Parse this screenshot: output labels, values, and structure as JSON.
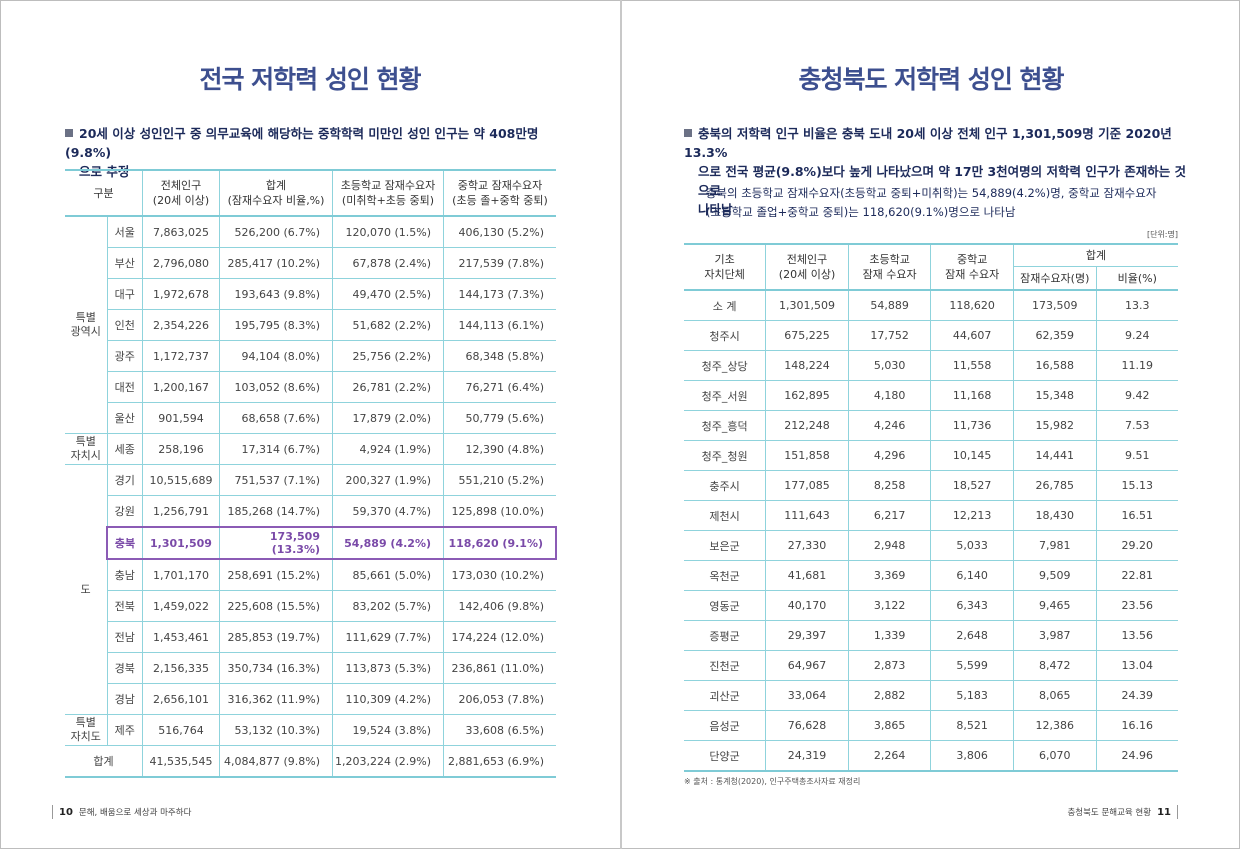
{
  "left_page": {
    "title": "전국 저학력 성인 현황",
    "lead_line1": "20세 이상 성인인구 중 의무교육에 해당하는 중학학력 미만인 성인 인구는 약 408만명(9.8%)",
    "lead_line2": "으로 추정",
    "table": {
      "headers": {
        "category": "구분",
        "population": [
          "전체인구",
          "(20세 이상)"
        ],
        "total": [
          "합계",
          "(잠재수요자 비율,%)"
        ],
        "elementary": [
          "초등학교 잠재수요자",
          "(미취학+초등 중퇴)"
        ],
        "middle": [
          "중학교 잠재수요자",
          "(초등 졸+중학 중퇴)"
        ]
      },
      "groups": {
        "metro": [
          "특별",
          "광역시"
        ],
        "special_city": [
          "특별",
          "자치시"
        ],
        "province": "도",
        "special_province": [
          "특별",
          "자치도"
        ]
      },
      "rows": [
        {
          "region": "서울",
          "population": "7,863,025",
          "total": "526,200 (6.7%)",
          "elementary": "120,070 (1.5%)",
          "middle": "406,130 (5.2%)"
        },
        {
          "region": "부산",
          "population": "2,796,080",
          "total": "285,417 (10.2%)",
          "elementary": "67,878 (2.4%)",
          "middle": "217,539 (7.8%)"
        },
        {
          "region": "대구",
          "population": "1,972,678",
          "total": "193,643 (9.8%)",
          "elementary": "49,470 (2.5%)",
          "middle": "144,173 (7.3%)"
        },
        {
          "region": "인천",
          "population": "2,354,226",
          "total": "195,795 (8.3%)",
          "elementary": "51,682 (2.2%)",
          "middle": "144,113 (6.1%)"
        },
        {
          "region": "광주",
          "population": "1,172,737",
          "total": "94,104 (8.0%)",
          "elementary": "25,756 (2.2%)",
          "middle": "68,348 (5.8%)"
        },
        {
          "region": "대전",
          "population": "1,200,167",
          "total": "103,052 (8.6%)",
          "elementary": "26,781 (2.2%)",
          "middle": "76,271 (6.4%)"
        },
        {
          "region": "울산",
          "population": "901,594",
          "total": "68,658 (7.6%)",
          "elementary": "17,879 (2.0%)",
          "middle": "50,779 (5.6%)"
        },
        {
          "region": "세종",
          "population": "258,196",
          "total": "17,314 (6.7%)",
          "elementary": "4,924 (1.9%)",
          "middle": "12,390 (4.8%)"
        },
        {
          "region": "경기",
          "population": "10,515,689",
          "total": "751,537 (7.1%)",
          "elementary": "200,327 (1.9%)",
          "middle": "551,210 (5.2%)"
        },
        {
          "region": "강원",
          "population": "1,256,791",
          "total": "185,268 (14.7%)",
          "elementary": "59,370 (4.7%)",
          "middle": "125,898 (10.0%)"
        },
        {
          "region": "충북",
          "population": "1,301,509",
          "total": "173,509 (13.3%)",
          "elementary": "54,889 (4.2%)",
          "middle": "118,620 (9.1%)"
        },
        {
          "region": "충남",
          "population": "1,701,170",
          "total": "258,691 (15.2%)",
          "elementary": "85,661 (5.0%)",
          "middle": "173,030 (10.2%)"
        },
        {
          "region": "전북",
          "population": "1,459,022",
          "total": "225,608 (15.5%)",
          "elementary": "83,202 (5.7%)",
          "middle": "142,406 (9.8%)"
        },
        {
          "region": "전남",
          "population": "1,453,461",
          "total": "285,853 (19.7%)",
          "elementary": "111,629 (7.7%)",
          "middle": "174,224 (12.0%)"
        },
        {
          "region": "경북",
          "population": "2,156,335",
          "total": "350,734 (16.3%)",
          "elementary": "113,873 (5.3%)",
          "middle": "236,861 (11.0%)"
        },
        {
          "region": "경남",
          "population": "2,656,101",
          "total": "316,362 (11.9%)",
          "elementary": "110,309 (4.2%)",
          "middle": "206,053 (7.8%)"
        },
        {
          "region": "제주",
          "population": "516,764",
          "total": "53,132 (10.3%)",
          "elementary": "19,524 (3.8%)",
          "middle": "33,608 (6.5%)"
        }
      ],
      "total_row": {
        "label": "합계",
        "population": "41,535,545",
        "total": "4,084,877 (9.8%)",
        "elementary": "1,203,224 (2.9%)",
        "middle": "2,881,653 (6.9%)"
      }
    },
    "footer": {
      "page_number": "10",
      "text": "문해, 배움으로 세상과 마주하다"
    }
  },
  "right_page": {
    "title": "충청북도 저학력 성인 현황",
    "lead_line1": "충북의 저학력 인구 비율은 충북 도내 20세 이상 전체 인구 1,301,509명 기준 2020년 13.3%",
    "lead_line2": "으로 전국 평균(9.8%)보다 높게 나타났으며 약 17만 3천여명의 저학력 인구가 존재하는 것으로",
    "lead_line3": "나타남",
    "sub_line1": "- 충북의 초등학교 잠재수요자(초등학교 중퇴+미취학)는 54,889(4.2%)명, 중학교 잠재수요자",
    "sub_line2": "(초등학교 졸업+중학교 중퇴)는 118,620(9.1%)명으로 나타남",
    "unit": "[단위:명]",
    "table": {
      "headers": {
        "unit": [
          "기초",
          "자치단체"
        ],
        "population": [
          "전체인구",
          "(20세 이상)"
        ],
        "elementary": [
          "초등학교",
          "잠재 수요자"
        ],
        "middle": [
          "중학교",
          "잠재 수요자"
        ],
        "sum": "합계",
        "sum_count": "잠재수요자(명)",
        "sum_ratio": "비율(%)"
      },
      "rows": [
        {
          "name": "소 계",
          "population": "1,301,509",
          "elementary": "54,889",
          "middle": "118,620",
          "count": "173,509",
          "ratio": "13.3"
        },
        {
          "name": "청주시",
          "population": "675,225",
          "elementary": "17,752",
          "middle": "44,607",
          "count": "62,359",
          "ratio": "9.24"
        },
        {
          "name": "청주_상당",
          "population": "148,224",
          "elementary": "5,030",
          "middle": "11,558",
          "count": "16,588",
          "ratio": "11.19"
        },
        {
          "name": "청주_서원",
          "population": "162,895",
          "elementary": "4,180",
          "middle": "11,168",
          "count": "15,348",
          "ratio": "9.42"
        },
        {
          "name": "청주_흥덕",
          "population": "212,248",
          "elementary": "4,246",
          "middle": "11,736",
          "count": "15,982",
          "ratio": "7.53"
        },
        {
          "name": "청주_청원",
          "population": "151,858",
          "elementary": "4,296",
          "middle": "10,145",
          "count": "14,441",
          "ratio": "9.51"
        },
        {
          "name": "충주시",
          "population": "177,085",
          "elementary": "8,258",
          "middle": "18,527",
          "count": "26,785",
          "ratio": "15.13"
        },
        {
          "name": "제천시",
          "population": "111,643",
          "elementary": "6,217",
          "middle": "12,213",
          "count": "18,430",
          "ratio": "16.51"
        },
        {
          "name": "보은군",
          "population": "27,330",
          "elementary": "2,948",
          "middle": "5,033",
          "count": "7,981",
          "ratio": "29.20"
        },
        {
          "name": "옥천군",
          "population": "41,681",
          "elementary": "3,369",
          "middle": "6,140",
          "count": "9,509",
          "ratio": "22.81"
        },
        {
          "name": "영동군",
          "population": "40,170",
          "elementary": "3,122",
          "middle": "6,343",
          "count": "9,465",
          "ratio": "23.56"
        },
        {
          "name": "증평군",
          "population": "29,397",
          "elementary": "1,339",
          "middle": "2,648",
          "count": "3,987",
          "ratio": "13.56"
        },
        {
          "name": "진천군",
          "population": "64,967",
          "elementary": "2,873",
          "middle": "5,599",
          "count": "8,472",
          "ratio": "13.04"
        },
        {
          "name": "괴산군",
          "population": "33,064",
          "elementary": "2,882",
          "middle": "5,183",
          "count": "8,065",
          "ratio": "24.39"
        },
        {
          "name": "음성군",
          "population": "76,628",
          "elementary": "3,865",
          "middle": "8,521",
          "count": "12,386",
          "ratio": "16.16"
        },
        {
          "name": "단양군",
          "population": "24,319",
          "elementary": "2,264",
          "middle": "3,806",
          "count": "6,070",
          "ratio": "24.96"
        }
      ]
    },
    "source": "※ 출처 : 통계청(2020), 인구주택총조사자료 재정리",
    "footer": {
      "page_number": "11",
      "text": "충청북도 문해교육 현황"
    }
  },
  "colors": {
    "title": "#3d4f8f",
    "table_border": "#8fd3dc",
    "highlight": "#8b5bb5",
    "lead_text": "#1c2a5a"
  }
}
